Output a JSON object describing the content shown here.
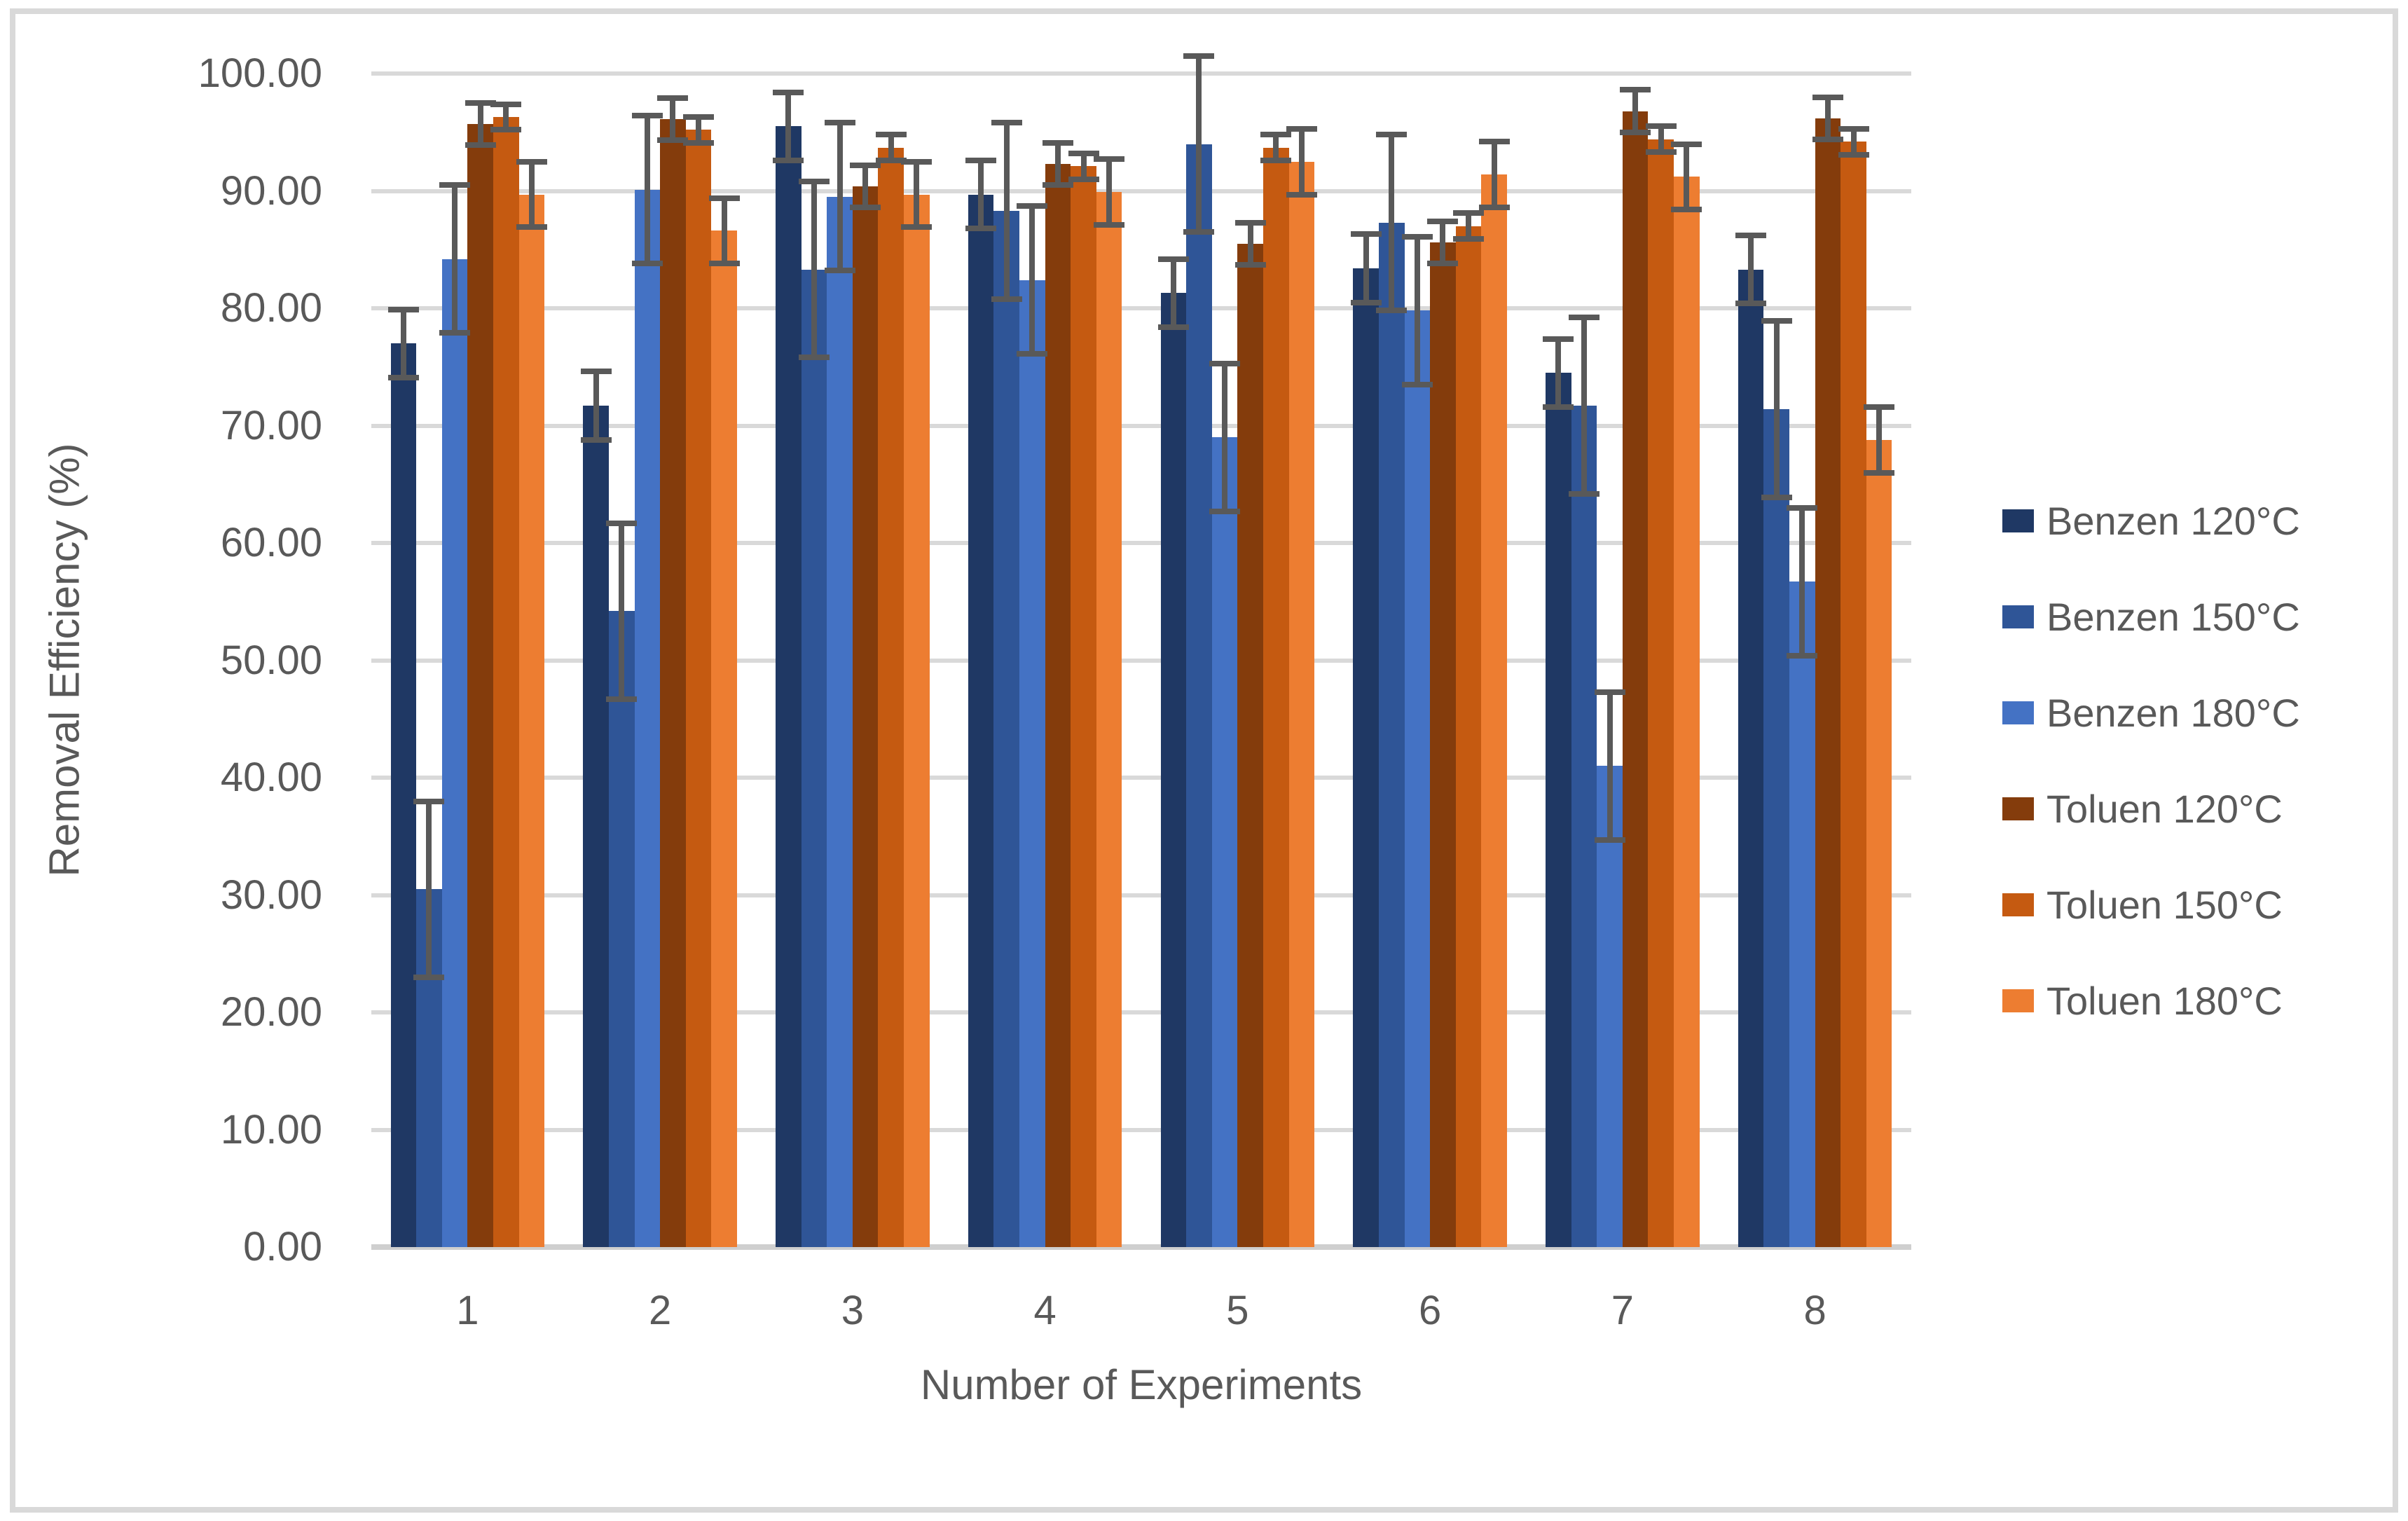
{
  "chart_data": {
    "type": "bar",
    "title": "",
    "xlabel": "Number of Experiments",
    "ylabel": "Removal Efficiency (%)",
    "ylim": [
      0,
      100
    ],
    "ytick_step": 10,
    "ytick_labels": [
      "0.00",
      "10.00",
      "20.00",
      "30.00",
      "40.00",
      "50.00",
      "60.00",
      "70.00",
      "80.00",
      "90.00",
      "100.00"
    ],
    "categories": [
      "1",
      "2",
      "3",
      "4",
      "5",
      "6",
      "7",
      "8"
    ],
    "grid": true,
    "legend_position": "right",
    "gridline_color": "#D9D9D9",
    "error_bar_color": "#595959",
    "text_color": "#595959",
    "series": [
      {
        "name": "Benzen 120°C",
        "color": "#1F3864",
        "error": 2.9,
        "values": [
          77.0,
          71.7,
          95.5,
          89.7,
          81.3,
          83.4,
          74.5,
          83.3
        ]
      },
      {
        "name": "Benzen 150°C",
        "color": "#2F5597",
        "error": 7.5,
        "values": [
          30.5,
          54.2,
          83.3,
          88.3,
          94.0,
          87.3,
          71.7,
          71.4
        ]
      },
      {
        "name": "Benzen 180°C",
        "color": "#4472C4",
        "error": 6.3,
        "values": [
          84.2,
          90.1,
          89.5,
          82.4,
          69.0,
          79.8,
          41.0,
          56.7
        ]
      },
      {
        "name": "Toluen 120°C",
        "color": "#843C0C",
        "error": 1.8,
        "values": [
          95.7,
          96.1,
          90.4,
          92.3,
          85.5,
          85.6,
          96.8,
          96.2
        ]
      },
      {
        "name": "Toluen 150°C",
        "color": "#C55A11",
        "error": 1.1,
        "values": [
          96.3,
          95.2,
          93.7,
          92.1,
          93.7,
          87.0,
          94.4,
          94.2
        ]
      },
      {
        "name": "Toluen 180°C",
        "color": "#ED7D31",
        "error": 2.8,
        "values": [
          89.7,
          86.6,
          89.7,
          89.9,
          92.5,
          91.4,
          91.2,
          68.8
        ]
      }
    ]
  }
}
